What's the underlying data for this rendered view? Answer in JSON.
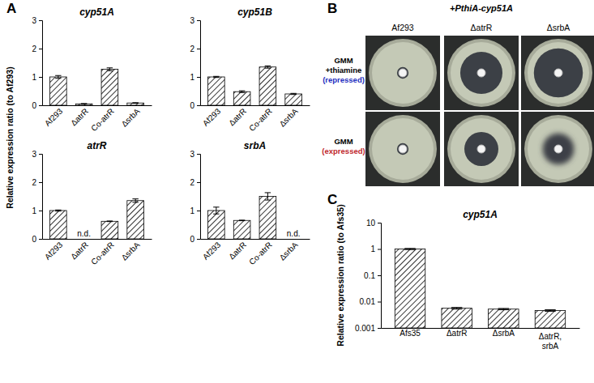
{
  "chart_data": [
    {
      "type": "bar",
      "annotations": [
        "A"
      ],
      "title": "cyp51A",
      "y_label": "Relative expression ratio (to Af293)",
      "categories": [
        "Af293",
        "ΔatrR",
        "Co-atrR",
        "ΔsrbA"
      ],
      "values": [
        1.0,
        0.05,
        1.27,
        0.08
      ],
      "errors": [
        0.05,
        0.01,
        0.05,
        0.01
      ],
      "color": "#000000",
      "ylim": [
        0,
        3
      ],
      "yticks": [
        0,
        1,
        2,
        3
      ]
    },
    {
      "type": "bar",
      "title": "cyp51B",
      "categories": [
        "Af293",
        "ΔatrR",
        "Co-atrR",
        "ΔsrbA"
      ],
      "values": [
        1.0,
        0.48,
        1.35,
        0.4
      ],
      "errors": [
        0.02,
        0.03,
        0.04,
        0.02
      ],
      "color": "#000000",
      "ylim": [
        0,
        3
      ],
      "yticks": [
        0,
        1,
        2,
        3
      ]
    },
    {
      "type": "bar",
      "title": "atrR",
      "categories": [
        "Af293",
        "ΔatrR",
        "Co-atrR",
        "ΔsrbA"
      ],
      "values": [
        1.0,
        null,
        0.62,
        1.35
      ],
      "value_labels": [
        null,
        "n.d.",
        null,
        null
      ],
      "errors": [
        0.02,
        null,
        0.01,
        0.06
      ],
      "color": "#000000",
      "ylim": [
        0,
        3
      ],
      "yticks": [
        0,
        1,
        2,
        3
      ]
    },
    {
      "type": "bar",
      "title": "srbA",
      "categories": [
        "Af293",
        "ΔatrR",
        "Co-atrR",
        "ΔsrbA"
      ],
      "values": [
        1.0,
        0.65,
        1.5,
        null
      ],
      "value_labels": [
        null,
        null,
        null,
        "n.d."
      ],
      "errors": [
        0.12,
        0.01,
        0.13,
        null
      ],
      "color": "#000000",
      "ylim": [
        0,
        3
      ],
      "yticks": [
        0,
        1,
        2,
        3
      ]
    },
    {
      "type": "bar",
      "annotations": [
        "C"
      ],
      "title": "cyp51A",
      "y_label": "Relative expression ratio (to Afs35)",
      "categories": [
        "Afs35",
        "ΔatrR",
        "ΔsrbA",
        "ΔatrR, srbA"
      ],
      "values": [
        1,
        0.0056,
        0.0052,
        0.0046
      ],
      "errors": [
        0.05,
        0.0004,
        0.0003,
        0.0003
      ],
      "color": "#000000",
      "ylim": [
        0.001,
        10
      ],
      "yticks": [
        0.001,
        0.01,
        0.1,
        1,
        10
      ],
      "log": "y"
    }
  ],
  "plate_assay": {
    "panel": "B",
    "title": "+PthiA-cyp51A",
    "columns": [
      "Af293",
      "ΔatrR",
      "ΔsrbA"
    ],
    "rows": [
      {
        "label": [
          "GMM",
          "+thiamine"
        ],
        "condition": "(repressed)",
        "condition_color": "#1f2fbf"
      },
      {
        "label": [
          "GMM"
        ],
        "condition": "(expressed)",
        "condition_color": "#c0282d"
      }
    ]
  }
}
